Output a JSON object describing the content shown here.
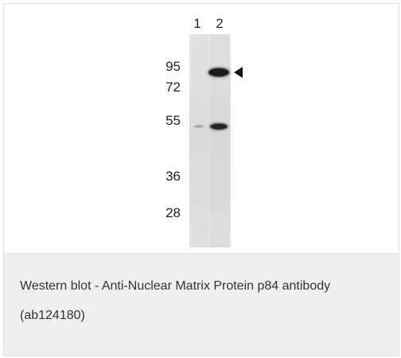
{
  "figure": {
    "lanes": [
      {
        "label": "1"
      },
      {
        "label": "2"
      }
    ],
    "mw_markers": [
      "95",
      "72",
      "55",
      "36",
      "28"
    ],
    "arrow": "left-pointing-triangle",
    "membrane_color": "#dcdcdc",
    "band_color": "#111111"
  },
  "caption": {
    "text": "Western blot - Anti-Nuclear Matrix Protein p84 antibody (ab124180)"
  }
}
